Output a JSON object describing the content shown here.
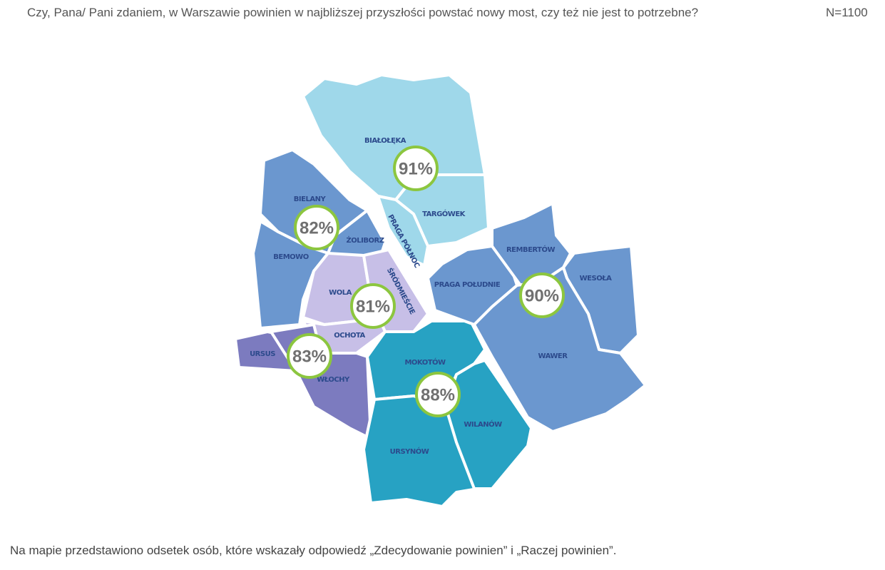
{
  "header": {
    "question": "Czy, Pana/ Pani zdaniem, w Warszawie powinien w najbliższej przyszłości powstać nowy most, czy też nie jest to potrzebne?",
    "sample": "N=1100"
  },
  "map": {
    "districts": [
      "BIAŁOŁĘKA",
      "TARGÓWEK",
      "PRAGA PÓŁNOC",
      "BIELANY",
      "ŻOLIBORZ",
      "BEMOWO",
      "WOLA",
      "ŚRÓDMIEŚCIE",
      "OCHOTA",
      "URSUS",
      "WŁOCHY",
      "MOKOTÓW",
      "URSYNÓW",
      "WILANÓW",
      "PRAGA POŁUDNIE",
      "REMBERTÓW",
      "WESOŁA",
      "WAWER"
    ],
    "results": [
      "91%",
      "82%",
      "81%",
      "83%",
      "88%",
      "90%"
    ]
  },
  "footnote": "Na mapie przedstawiono odsetek osób, które wskazały odpowiedź „Zdecydowanie powinien” i „Raczej powinien”."
}
